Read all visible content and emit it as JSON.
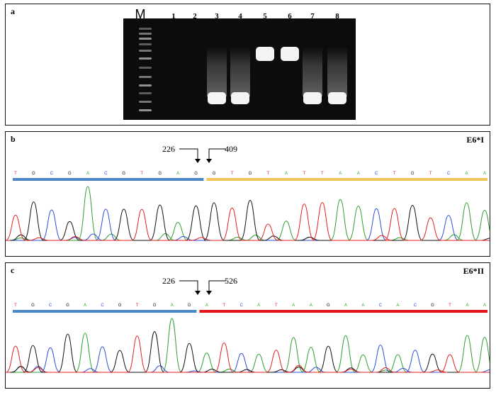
{
  "figure": {
    "panel_a": {
      "label": "a",
      "marker_label": "M",
      "lanes": [
        {
          "label": "1",
          "band": "none"
        },
        {
          "label": "2",
          "band": "none"
        },
        {
          "label": "3",
          "band": "low"
        },
        {
          "label": "4",
          "band": "low"
        },
        {
          "label": "5",
          "band": "high"
        },
        {
          "label": "6",
          "band": "high"
        },
        {
          "label": "7",
          "band": "low"
        },
        {
          "label": "8",
          "band": "low"
        }
      ]
    },
    "panel_b": {
      "label": "b",
      "variant": "E6*I",
      "junction_left": "226",
      "junction_right": "409",
      "seq_left": [
        "T",
        "G",
        "C",
        "G",
        "A",
        "C",
        "G",
        "T",
        "G",
        "A",
        "G"
      ],
      "seq_right": [
        "G",
        "T",
        "G",
        "T",
        "A",
        "T",
        "T",
        "A",
        "A",
        "C",
        "T",
        "G",
        "T",
        "C",
        "A",
        "A"
      ],
      "bar_left_color": "#4a87c9",
      "bar_right_color": "#f2c45c"
    },
    "panel_c": {
      "label": "c",
      "variant": "E6*II",
      "junction_left": "226",
      "junction_right": "526",
      "seq_left": [
        "T",
        "G",
        "C",
        "G",
        "A",
        "C",
        "G",
        "T",
        "G",
        "A",
        "G"
      ],
      "seq_right": [
        "A",
        "T",
        "C",
        "A",
        "T",
        "A",
        "A",
        "G",
        "A",
        "A",
        "C",
        "A",
        "C",
        "G",
        "T",
        "A",
        "A"
      ],
      "bar_left_color": "#4a87c9",
      "bar_right_color": "#e0161b"
    },
    "base_colors": {
      "A": "#2ca02c",
      "C": "#2c4fd8",
      "G": "#111111",
      "T": "#e02020"
    }
  }
}
